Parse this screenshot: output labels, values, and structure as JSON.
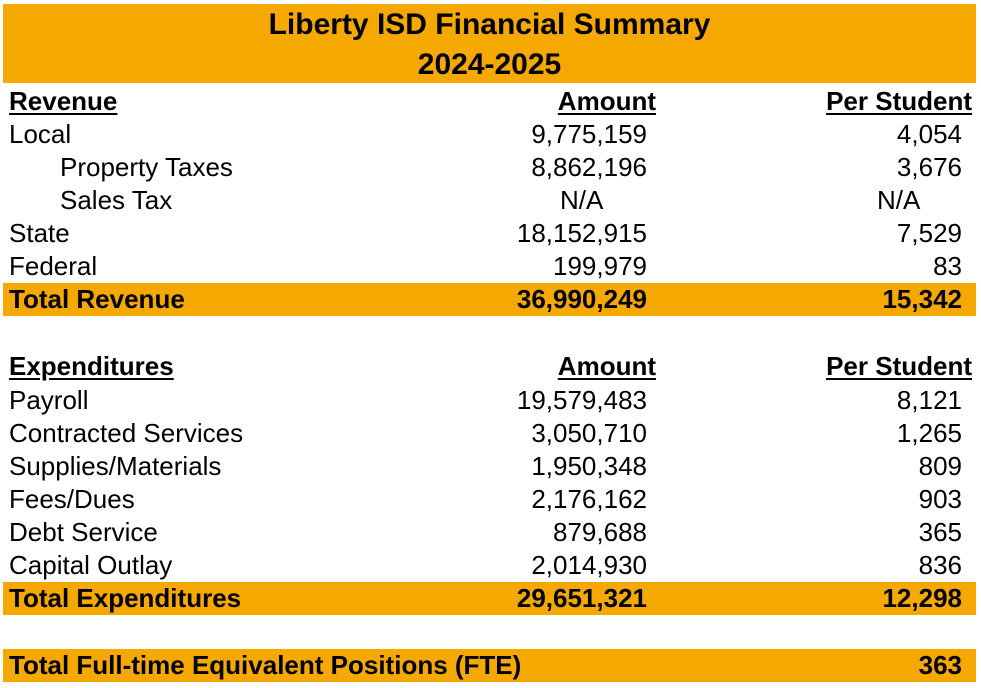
{
  "title": {
    "line1": "Liberty ISD Financial Summary",
    "line2": "2024-2025"
  },
  "revenue": {
    "header": {
      "label": "Revenue",
      "amount": "Amount",
      "per_student": "Per Student"
    },
    "rows": [
      {
        "label": "Local",
        "amount": "9,775,159",
        "per_student": "4,054"
      },
      {
        "label": "Property Taxes",
        "amount": "8,862,196",
        "per_student": "3,676"
      },
      {
        "label": "Sales Tax",
        "amount": "N/A",
        "per_student": "N/A"
      },
      {
        "label": "State",
        "amount": "18,152,915",
        "per_student": "7,529"
      },
      {
        "label": "Federal",
        "amount": "199,979",
        "per_student": "83"
      }
    ],
    "total": {
      "label": "Total Revenue",
      "amount": "36,990,249",
      "per_student": "15,342"
    }
  },
  "expenditures": {
    "header": {
      "label": "Expenditures",
      "amount": "Amount",
      "per_student": "Per Student"
    },
    "rows": [
      {
        "label": "Payroll",
        "amount": "19,579,483",
        "per_student": "8,121"
      },
      {
        "label": "Contracted Services",
        "amount": "3,050,710",
        "per_student": "1,265"
      },
      {
        "label": "Supplies/Materials",
        "amount": "1,950,348",
        "per_student": "809"
      },
      {
        "label": "Fees/Dues",
        "amount": "2,176,162",
        "per_student": "903"
      },
      {
        "label": "Debt Service",
        "amount": "879,688",
        "per_student": "365"
      },
      {
        "label": "Capital Outlay",
        "amount": "2,014,930",
        "per_student": "836"
      }
    ],
    "total": {
      "label": "Total Expenditures",
      "amount": "29,651,321",
      "per_student": "12,298"
    }
  },
  "fte": {
    "label": "Total Full-time Equivalent Positions (FTE)",
    "value": "363"
  },
  "colors": {
    "accent": "#F5A800",
    "text": "#000000",
    "background": "#FFFFFF"
  }
}
